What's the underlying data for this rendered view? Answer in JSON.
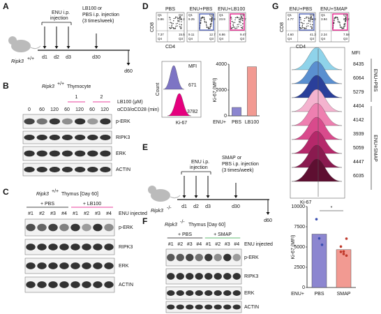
{
  "panel_labels": [
    "A",
    "B",
    "C",
    "D",
    "E",
    "F",
    "G"
  ],
  "panel_a": {
    "treatment": "LB100",
    "treatment_or": "or",
    "injection_line": "PBS i.p. injection",
    "schedule": "(3 times/week)",
    "genotype": "Ripk3",
    "genotype_sup": "+/+",
    "enu_line1": "ENU i.p.",
    "enu_line2": "injection",
    "days": [
      "d1",
      "d2",
      "d3",
      "d30",
      "d60"
    ]
  },
  "panel_b": {
    "title": "Ripk3",
    "title_sup": "+/+",
    "title_rest": "Thymocyte",
    "doses": [
      "1",
      "2"
    ],
    "dose_label": "LB100 (μM)",
    "times": [
      "0",
      "60",
      "120",
      "60",
      "120",
      "60",
      "120"
    ],
    "time_label": "αCD3/αCD28 (min)",
    "bands": [
      "p-ERK",
      "RIPK3",
      "ERK",
      "ACTIN"
    ]
  },
  "panel_c": {
    "title": "Ripk3",
    "title_sup": "+/+",
    "title_rest": "Thymus [Day 60]",
    "groups": [
      "+ PBS",
      "+ LB100"
    ],
    "lanes": [
      "#1",
      "#2",
      "#3",
      "#4",
      "#1",
      "#2",
      "#3",
      "#4"
    ],
    "lane_label": "ENU injected",
    "bands": [
      "p-ERK",
      "RIPK3",
      "ERK",
      "ACTIN"
    ]
  },
  "panel_d": {
    "flow": {
      "headers": [
        "PBS",
        "ENU+PBS"
      ],
      "header_prefix": "ENU+",
      "header_treatment": "LB100",
      "y_axis": "CD8",
      "x_axis": "CD4",
      "quadrant_names": [
        "Q1",
        "Q2",
        "Q3",
        "Q4"
      ],
      "quadrants": [
        [
          "0.86",
          "72.2",
          "15.5",
          "7.37"
        ],
        [
          "9.25",
          "68.9",
          "12.7",
          "9.11"
        ],
        [
          "23.9",
          "67.7",
          "9.47",
          "6.86"
        ]
      ]
    },
    "histogram": {
      "title": "MFI",
      "values": [
        "671",
        "3782"
      ],
      "y_axis": "Count",
      "x_axis": "Ki-67"
    },
    "bar_chart": {
      "y_axis": "Ki-67 (MFI)",
      "prefix": "ENU+",
      "categories": [
        "PBS",
        "LB100"
      ],
      "values": [
        650,
        3800
      ],
      "ylim": [
        0,
        4000
      ],
      "yticks": [
        0,
        2000,
        4000
      ]
    }
  },
  "panel_e": {
    "treatment": "SMAP",
    "treatment_or": "or",
    "injection_line": "PBS i.p. injection",
    "schedule": "(3 times/week)",
    "genotype": "Ripk3",
    "genotype_sup": "-/-",
    "enu_line1": "ENU i.p.",
    "enu_line2": "injection",
    "days": [
      "d1",
      "d2",
      "d3",
      "d30",
      "d60"
    ]
  },
  "panel_f": {
    "title": "Ripk3",
    "title_sup": "-/-",
    "title_rest": "Thymus [Day 60]",
    "groups": [
      "+ PBS",
      "+ SMAP"
    ],
    "lanes": [
      "#1",
      "#2",
      "#3",
      "#4",
      "#1",
      "#2",
      "#3",
      "#4"
    ],
    "lane_label": "ENU injected",
    "bands": [
      "p-ERK",
      "RIPK3",
      "ERK",
      "ACTIN"
    ]
  },
  "panel_g": {
    "flow": {
      "headers": [
        "ENU+PBS"
      ],
      "header_prefix": "ENU+",
      "header_treatment": "SMAP",
      "y_axis": "CD8",
      "x_axis": "CD4",
      "quadrant_names": [
        "Q1",
        "Q2",
        "Q3",
        "Q4"
      ],
      "quadrants": [
        [
          "4.77",
          "49.3",
          "41.3",
          "4.60"
        ],
        [
          "3.94",
          "86.2",
          "7.58",
          "2.24"
        ]
      ]
    },
    "histogram": {
      "title": "MFI",
      "mfi_pbs": [
        8435,
        6064,
        5279
      ],
      "mfi_smap": [
        4404,
        4142,
        3939,
        5059,
        4447,
        6035
      ],
      "group_pbs": "ENU+PBS",
      "group_smap_prefix": "ENU+",
      "group_smap": "SMAP",
      "x_axis": "Ki-67"
    },
    "bar_chart": {
      "y_axis": "Ki-67 (MFI)",
      "prefix": "ENU+",
      "categories": [
        "PBS",
        "SMAP"
      ],
      "values": [
        6593,
        4671
      ],
      "ylim": [
        0,
        10000
      ],
      "yticks": [
        0,
        2500,
        5000,
        7500,
        10000
      ],
      "significance": "*"
    }
  }
}
